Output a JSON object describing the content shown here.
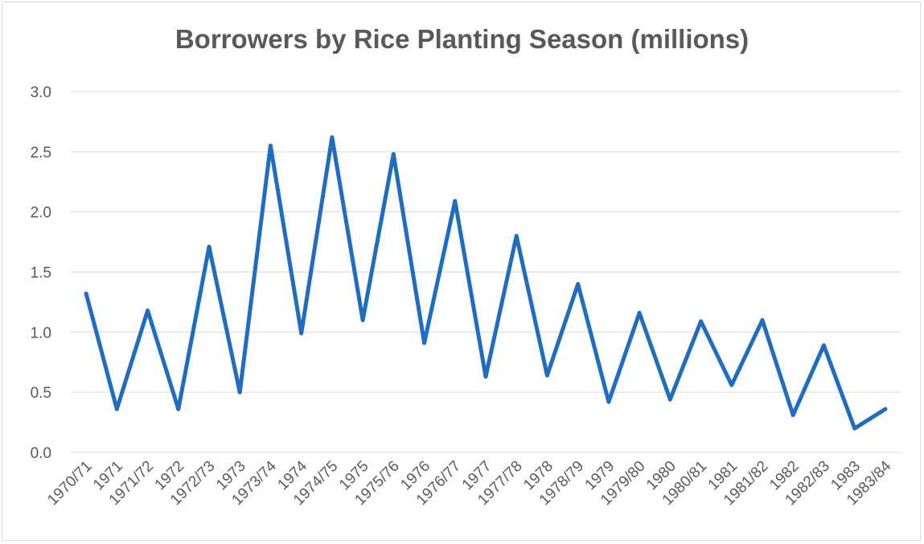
{
  "chart_data": {
    "type": "line",
    "title": "Borrowers by Rice Planting Season (millions)",
    "xlabel": "",
    "ylabel": "",
    "categories": [
      "1970/71",
      "1971",
      "1971/72",
      "1972",
      "1972/73",
      "1973",
      "1973/74",
      "1974",
      "1974/75",
      "1975",
      "1975/76",
      "1976",
      "1976/77",
      "1977",
      "1977/78",
      "1978",
      "1978/79",
      "1979",
      "1979/80",
      "1980",
      "1980/81",
      "1981",
      "1981/82",
      "1982",
      "1982/83",
      "1983",
      "1983/84"
    ],
    "series": [
      {
        "values": [
          1.32,
          0.36,
          1.18,
          0.36,
          1.71,
          0.5,
          2.55,
          0.99,
          2.62,
          1.1,
          2.48,
          0.91,
          2.09,
          0.63,
          1.8,
          0.64,
          1.4,
          0.42,
          1.16,
          0.44,
          1.09,
          0.56,
          1.1,
          0.31,
          0.89,
          0.2,
          0.36
        ]
      }
    ],
    "ylim": [
      0,
      3.0
    ],
    "yticks": [
      "0.0",
      "0.5",
      "1.0",
      "1.5",
      "2.0",
      "2.5",
      "3.0"
    ],
    "grid": true,
    "legend": "none",
    "line_color": "#1f6dc2",
    "grid_color": "#d9d9d9",
    "text_color": "#595959"
  }
}
